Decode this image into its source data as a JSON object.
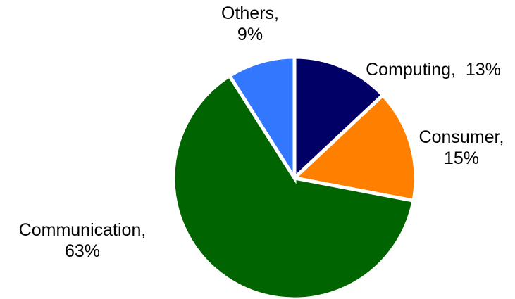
{
  "chart_data": {
    "type": "pie",
    "start_angle_deg": 0,
    "direction": "clockwise",
    "slices": [
      {
        "label": "Computing",
        "value": 13,
        "display": [
          "Computing,  13%"
        ],
        "color": "#000066"
      },
      {
        "label": "Consumer",
        "value": 15,
        "display": [
          "Consumer,",
          "15%"
        ],
        "color": "#ff8000"
      },
      {
        "label": "Communication",
        "value": 63,
        "display": [
          "Communication,",
          "63%"
        ],
        "color": "#006400"
      },
      {
        "label": "Others",
        "value": 9,
        "display": [
          "Others,",
          "9%"
        ],
        "color": "#3377ff"
      }
    ]
  }
}
